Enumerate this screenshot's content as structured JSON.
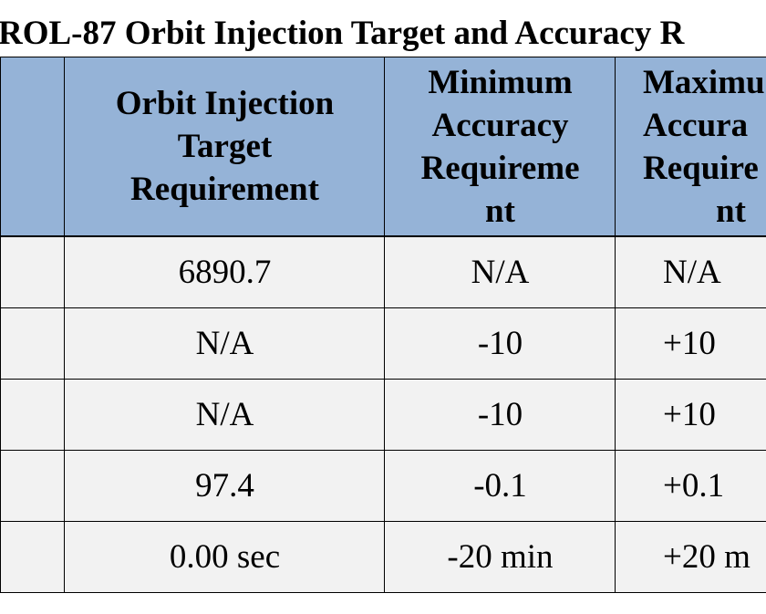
{
  "title": "ROL-87 Orbit Injection Target and Accuracy R",
  "table": {
    "headers": [
      [
        "Orbit Injection",
        "Target",
        "Requirement"
      ],
      [
        "Minimum",
        "Accuracy",
        "Requireme",
        "nt"
      ],
      [
        "Maximu",
        "Accura",
        "Require",
        "nt"
      ]
    ],
    "rows": [
      [
        "6890.7",
        "N/A",
        "N/A"
      ],
      [
        "N/A",
        "-10",
        "+10"
      ],
      [
        "N/A",
        "-10",
        "+10"
      ],
      [
        "97.4",
        "-0.1",
        "+0.1"
      ],
      [
        "0.00 sec",
        "-20 min",
        "+20 m"
      ]
    ]
  }
}
